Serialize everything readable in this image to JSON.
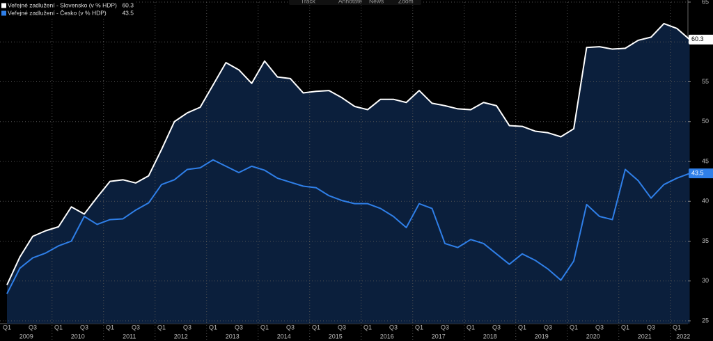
{
  "toolbar": [
    "Track",
    "Annotate",
    "News",
    "Zoom"
  ],
  "chart_data": {
    "type": "area-line",
    "categories": [
      "Q1",
      null,
      "Q3",
      null,
      "Q1",
      null,
      "Q3",
      null,
      "Q1",
      null,
      "Q3",
      null,
      "Q1",
      null,
      "Q3",
      null,
      "Q1",
      null,
      "Q3",
      null,
      "Q1",
      null,
      "Q3",
      null,
      "Q1",
      null,
      "Q3",
      null,
      "Q1",
      null,
      "Q3",
      null,
      "Q1",
      null,
      "Q3",
      null,
      "Q1",
      null,
      "Q3",
      null,
      "Q1",
      null,
      "Q3",
      null,
      "Q1",
      null,
      "Q3",
      null,
      "Q1",
      null,
      "Q3",
      null,
      "Q1",
      null
    ],
    "years": [
      "2009",
      "2010",
      "2011",
      "2012",
      "2013",
      "2014",
      "2015",
      "2016",
      "2017",
      "2018",
      "2019",
      "2020",
      "2021",
      "2022"
    ],
    "series": [
      {
        "name": "Veřejné zadlužení - Slovensko (v % HDP)",
        "color": "#ffffff",
        "fill": "#0b1f3c",
        "values": [
          29.5,
          33,
          35.6,
          36.3,
          36.8,
          39.3,
          38.4,
          40.5,
          42.5,
          42.7,
          42.3,
          43.2,
          46.5,
          50,
          51.1,
          51.8,
          54.6,
          57.4,
          56.5,
          54.8,
          57.6,
          55.6,
          55.4,
          53.6,
          53.8,
          53.9,
          53,
          51.9,
          51.5,
          52.8,
          52.8,
          52.4,
          53.9,
          52.3,
          52,
          51.6,
          51.5,
          52.4,
          52,
          49.5,
          49.4,
          48.8,
          48.6,
          48.1,
          49.1,
          59.3,
          59.4,
          59.1,
          59.2,
          60.2,
          60.6,
          62.3,
          61.7,
          60.3
        ]
      },
      {
        "name": "Veřejné zadlužení - Česko (v % HDP)",
        "color": "#2f7fe8",
        "values": [
          28.4,
          31.6,
          32.9,
          33.5,
          34.4,
          35,
          38.1,
          37.1,
          37.7,
          37.8,
          38.9,
          39.8,
          42.1,
          42.7,
          44,
          44.2,
          45.2,
          44.4,
          43.6,
          44.4,
          43.9,
          42.9,
          42.4,
          41.9,
          41.7,
          40.7,
          40.1,
          39.7,
          39.7,
          39.1,
          38.1,
          36.7,
          39.7,
          39.1,
          34.7,
          34.2,
          35.2,
          34.7,
          33.4,
          32.1,
          33.4,
          32.6,
          31.5,
          30.1,
          32.5,
          39.6,
          38.1,
          37.7,
          44,
          42.6,
          40.4,
          42.1,
          42.9,
          43.5
        ]
      }
    ],
    "ylim": [
      25,
      65
    ],
    "yticks": [
      25,
      30,
      35,
      40,
      45,
      50,
      55,
      60,
      65
    ],
    "grid": true
  }
}
